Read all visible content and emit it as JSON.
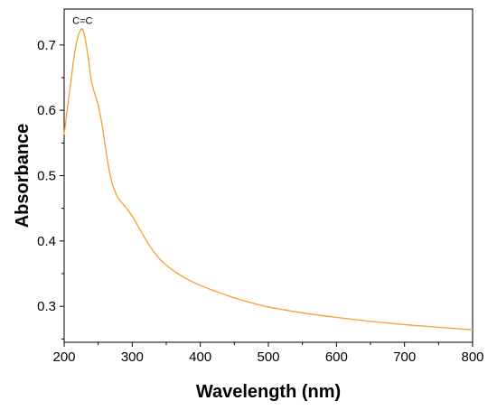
{
  "chart_data": {
    "type": "line",
    "title": "",
    "xlabel": "Wavelength (nm)",
    "ylabel": "Absorbance",
    "xlim": [
      200,
      800
    ],
    "ylim": [
      0.245,
      0.755
    ],
    "xticks": [
      200,
      300,
      400,
      500,
      600,
      700,
      800
    ],
    "yticks": [
      0.3,
      0.4,
      0.5,
      0.6,
      0.7
    ],
    "xtick_labels": [
      "200",
      "300",
      "400",
      "500",
      "600",
      "700",
      "800"
    ],
    "ytick_labels": [
      "0.3",
      "0.4",
      "0.5",
      "0.6",
      "0.7"
    ],
    "grid": false,
    "legend": "none",
    "color": "#f5a030",
    "annotations": [
      {
        "text": "C=C",
        "x": 227,
        "y": 0.732
      }
    ],
    "series": [
      {
        "x": [
          200,
          205,
          210,
          215,
          220,
          225,
          228,
          232,
          236,
          240,
          245,
          250,
          255,
          260,
          265,
          270,
          275,
          280,
          290,
          300,
          310,
          320,
          330,
          340,
          350,
          360,
          380,
          400,
          420,
          450,
          480,
          500,
          550,
          600,
          650,
          700,
          750,
          800
        ],
        "y": [
          0.563,
          0.605,
          0.645,
          0.685,
          0.712,
          0.724,
          0.722,
          0.703,
          0.676,
          0.645,
          0.625,
          0.608,
          0.582,
          0.548,
          0.515,
          0.49,
          0.475,
          0.465,
          0.452,
          0.438,
          0.42,
          0.402,
          0.386,
          0.373,
          0.363,
          0.355,
          0.342,
          0.332,
          0.324,
          0.313,
          0.304,
          0.299,
          0.29,
          0.283,
          0.277,
          0.272,
          0.268,
          0.264
        ]
      }
    ]
  }
}
